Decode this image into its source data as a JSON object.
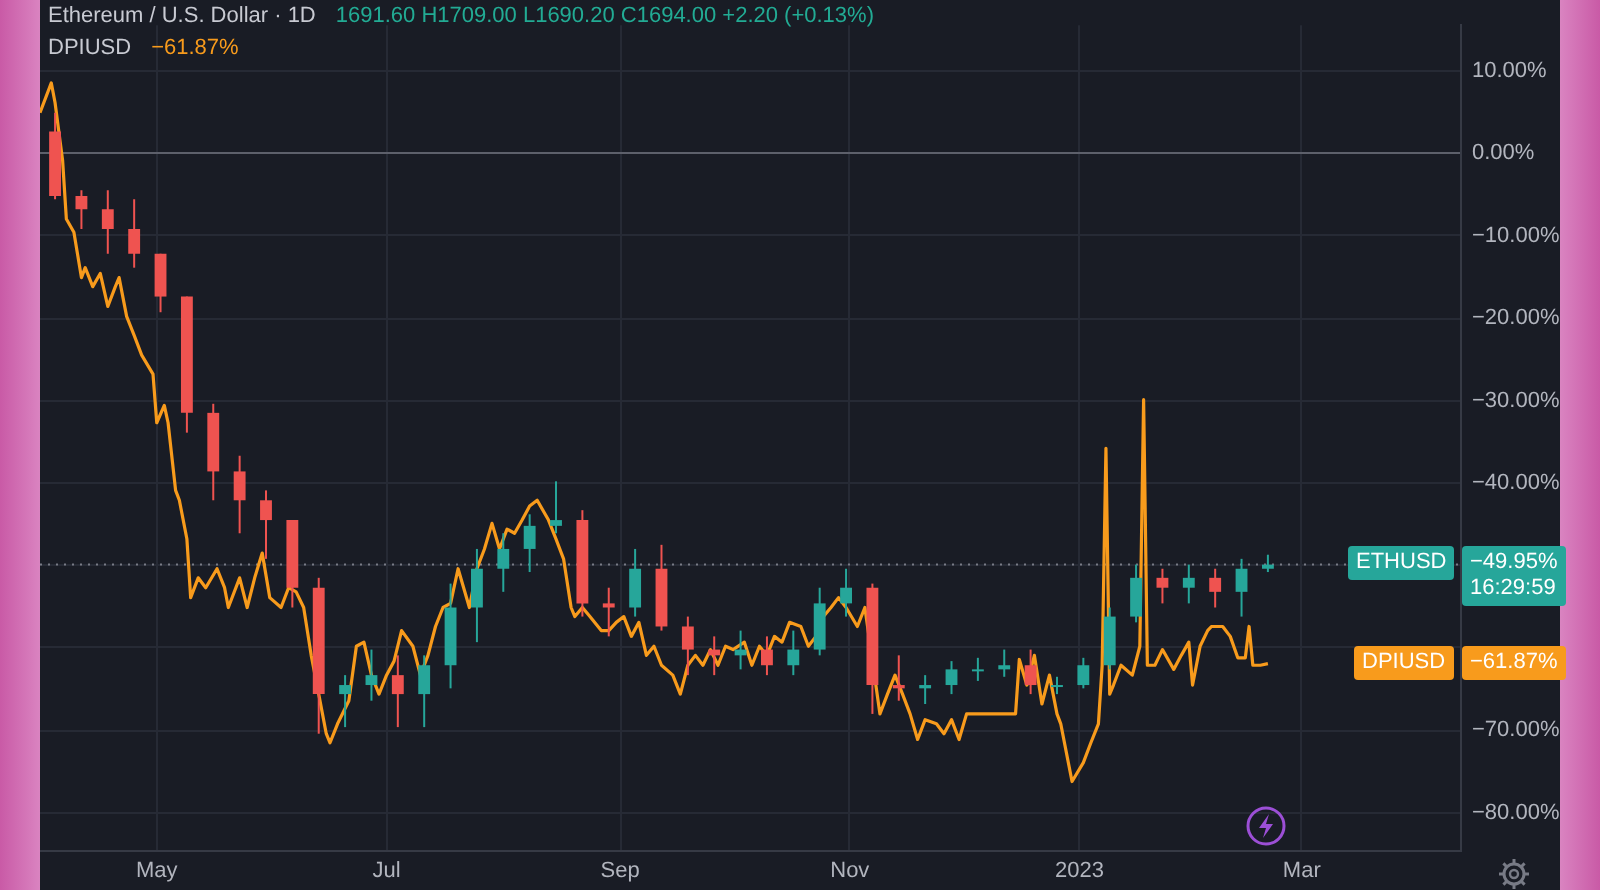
{
  "chart_data": {
    "type": "candlestick",
    "title": "Ethereum / U.S. Dollar · 1D",
    "annotations": [
      "1691.60 H1709.00 L1690.20 C1694.00 +2.20 (+0.13%)",
      "−61.87%",
      "−49.95%\n16:29:59",
      "−61.87%"
    ],
    "series": [
      {
        "name": "ETHUSD",
        "x": [
          "2022-04-04",
          "2022-04-11",
          "2022-04-18",
          "2022-04-25",
          "2022-05-02",
          "2022-05-09",
          "2022-05-16",
          "2022-05-23",
          "2022-05-30",
          "2022-06-06",
          "2022-06-13",
          "2022-06-20",
          "2022-06-27",
          "2022-07-04",
          "2022-07-11",
          "2022-07-18",
          "2022-07-25",
          "2022-08-01",
          "2022-08-08",
          "2022-08-15",
          "2022-08-22",
          "2022-08-29",
          "2022-09-05",
          "2022-09-12",
          "2022-09-19",
          "2022-09-26",
          "2022-10-03",
          "2022-10-10",
          "2022-10-17",
          "2022-10-24",
          "2022-10-31",
          "2022-11-07",
          "2022-11-14",
          "2022-11-21",
          "2022-11-28",
          "2022-12-05",
          "2022-12-12",
          "2022-12-19",
          "2022-12-26",
          "2023-01-02",
          "2023-01-09",
          "2023-01-16",
          "2023-01-23",
          "2023-01-30",
          "2023-02-06",
          "2023-02-13",
          "2023-02-20"
        ],
        "ohlc": [
          [
            2.6,
            4.9,
            -5.6,
            -5.2
          ],
          [
            -5.2,
            -4.5,
            -9.2,
            -6.8
          ],
          [
            -6.8,
            -4.5,
            -12.2,
            -9.2
          ],
          [
            -9.2,
            -5.6,
            -13.9,
            -12.2
          ],
          [
            -12.2,
            -12.2,
            -19.3,
            -17.4
          ],
          [
            -17.4,
            -17.4,
            -33.9,
            -31.5
          ],
          [
            -31.5,
            -30.4,
            -42.1,
            -38.6
          ],
          [
            -38.6,
            -36.7,
            -46.1,
            -42.1
          ],
          [
            -42.1,
            -40.9,
            -49.2,
            -44.5
          ],
          [
            -44.5,
            -44.5,
            -55.1,
            -52.7
          ],
          [
            -52.7,
            -51.5,
            -70.4,
            -65.6
          ],
          [
            -65.6,
            -63.3,
            -69.6,
            -64.5
          ],
          [
            -64.5,
            -60.2,
            -66.4,
            -63.3
          ],
          [
            -63.3,
            -60.9,
            -69.6,
            -65.6
          ],
          [
            -65.6,
            -60.9,
            -69.6,
            -62.1
          ],
          [
            -62.1,
            -52.2,
            -64.9,
            -55.1
          ],
          [
            -55.1,
            -48.0,
            -59.3,
            -50.4
          ],
          [
            -50.4,
            -46.1,
            -53.2,
            -48.0
          ],
          [
            -48.0,
            -43.8,
            -50.8,
            -45.2
          ],
          [
            -45.2,
            -39.8,
            -46.1,
            -44.5
          ],
          [
            -44.5,
            -43.3,
            -56.2,
            -54.6
          ],
          [
            -54.6,
            -52.7,
            -58.6,
            -55.1
          ],
          [
            -55.1,
            -48.0,
            -56.2,
            -50.4
          ],
          [
            -50.4,
            -47.5,
            -57.9,
            -57.4
          ],
          [
            -57.4,
            -56.2,
            -63.3,
            -60.2
          ],
          [
            -60.2,
            -58.6,
            -63.3,
            -60.9
          ],
          [
            -60.9,
            -57.9,
            -62.6,
            -60.2
          ],
          [
            -60.2,
            -58.6,
            -63.3,
            -62.1
          ],
          [
            -62.1,
            -57.9,
            -63.3,
            -60.2
          ],
          [
            -60.2,
            -52.7,
            -60.9,
            -54.6
          ],
          [
            -54.6,
            -50.4,
            -56.2,
            -52.7
          ],
          [
            -52.7,
            -52.2,
            -68.0,
            -64.5
          ],
          [
            -64.5,
            -60.9,
            -66.4,
            -64.9
          ],
          [
            -64.9,
            -63.3,
            -66.8,
            -64.5
          ],
          [
            -64.5,
            -61.6,
            -65.6,
            -62.6
          ],
          [
            -62.6,
            -61.2,
            -64.0,
            -62.6
          ],
          [
            -62.6,
            -60.2,
            -63.5,
            -62.1
          ],
          [
            -62.1,
            -60.2,
            -65.6,
            -64.5
          ],
          [
            -64.5,
            -63.5,
            -65.6,
            -64.5
          ],
          [
            -64.5,
            -61.2,
            -64.9,
            -62.1
          ],
          [
            -62.1,
            -55.1,
            -62.6,
            -56.2
          ],
          [
            -56.2,
            -49.9,
            -56.9,
            -51.5
          ],
          [
            -51.5,
            -50.4,
            -54.6,
            -52.7
          ],
          [
            -52.7,
            -49.9,
            -54.6,
            -51.5
          ],
          [
            -51.5,
            -50.4,
            -55.1,
            -53.2
          ],
          [
            -53.2,
            -49.2,
            -56.2,
            -50.4
          ],
          [
            -50.4,
            -48.7,
            -50.8,
            -49.9
          ]
        ],
        "colors": [
          "#ef5350",
          "#ef5350",
          "#ef5350",
          "#ef5350",
          "#ef5350",
          "#ef5350",
          "#ef5350",
          "#ef5350",
          "#ef5350",
          "#ef5350",
          "#ef5350",
          "#26a69a",
          "#26a69a",
          "#ef5350",
          "#26a69a",
          "#26a69a",
          "#26a69a",
          "#26a69a",
          "#26a69a",
          "#26a69a",
          "#ef5350",
          "#ef5350",
          "#26a69a",
          "#ef5350",
          "#ef5350",
          "#ef5350",
          "#26a69a",
          "#ef5350",
          "#26a69a",
          "#26a69a",
          "#26a69a",
          "#ef5350",
          "#ef5350",
          "#26a69a",
          "#26a69a",
          "#26a69a",
          "#26a69a",
          "#ef5350",
          "#26a69a",
          "#26a69a",
          "#26a69a",
          "#26a69a",
          "#ef5350",
          "#26a69a",
          "#ef5350",
          "#26a69a",
          "#26a69a"
        ]
      },
      {
        "name": "DPIUSD",
        "type": "line",
        "color": "#f89b1c",
        "x": [
          "2022-03-31",
          "2022-04-03",
          "2022-04-04",
          "2022-04-06",
          "2022-04-07",
          "2022-04-09",
          "2022-04-11",
          "2022-04-12",
          "2022-04-14",
          "2022-04-16",
          "2022-04-18",
          "2022-04-20",
          "2022-04-21",
          "2022-04-23",
          "2022-04-25",
          "2022-04-27",
          "2022-04-30",
          "2022-05-01",
          "2022-05-03",
          "2022-05-04",
          "2022-05-06",
          "2022-05-07",
          "2022-05-09",
          "2022-05-10",
          "2022-05-12",
          "2022-05-14",
          "2022-05-17",
          "2022-05-19",
          "2022-05-20",
          "2022-05-23",
          "2022-05-25",
          "2022-05-27",
          "2022-05-29",
          "2022-05-31",
          "2022-06-03",
          "2022-06-05",
          "2022-06-07",
          "2022-06-09",
          "2022-06-11",
          "2022-06-13",
          "2022-06-15",
          "2022-06-16",
          "2022-06-18",
          "2022-06-21",
          "2022-06-23",
          "2022-06-25",
          "2022-06-27",
          "2022-06-29",
          "2022-07-01",
          "2022-07-03",
          "2022-07-05",
          "2022-07-08",
          "2022-07-10",
          "2022-07-12",
          "2022-07-14",
          "2022-07-16",
          "2022-07-18",
          "2022-07-20",
          "2022-07-23",
          "2022-07-25",
          "2022-07-27",
          "2022-07-29",
          "2022-07-31",
          "2022-08-02",
          "2022-08-04",
          "2022-08-06",
          "2022-08-08",
          "2022-08-10",
          "2022-08-13",
          "2022-08-15",
          "2022-08-17",
          "2022-08-19",
          "2022-08-20",
          "2022-08-22",
          "2022-08-24",
          "2022-08-27",
          "2022-08-29",
          "2022-08-31",
          "2022-09-02",
          "2022-09-04",
          "2022-09-06",
          "2022-09-08",
          "2022-09-10",
          "2022-09-12",
          "2022-09-15",
          "2022-09-17",
          "2022-09-19",
          "2022-09-21",
          "2022-09-23",
          "2022-09-25",
          "2022-09-27",
          "2022-09-29",
          "2022-10-01",
          "2022-10-04",
          "2022-10-06",
          "2022-10-08",
          "2022-10-10",
          "2022-10-12",
          "2022-10-14",
          "2022-10-16",
          "2022-10-19",
          "2022-10-21",
          "2022-10-23",
          "2022-10-25",
          "2022-10-27",
          "2022-10-29",
          "2022-10-31",
          "2022-11-03",
          "2022-11-05",
          "2022-11-07",
          "2022-11-09",
          "2022-11-11",
          "2022-11-13",
          "2022-11-15",
          "2022-11-17",
          "2022-11-19",
          "2022-11-21",
          "2022-11-24",
          "2022-11-26",
          "2022-11-28",
          "2022-11-30",
          "2022-12-02",
          "2022-12-08",
          "2022-12-15",
          "2022-12-16",
          "2022-12-18",
          "2022-12-20",
          "2022-12-22",
          "2022-12-24",
          "2022-12-26",
          "2022-12-27",
          "2022-12-30",
          "2023-01-02",
          "2023-01-04",
          "2023-01-06",
          "2023-01-07",
          "2023-01-08",
          "2023-01-09",
          "2023-01-10",
          "2023-01-12",
          "2023-01-15",
          "2023-01-17",
          "2023-01-18",
          "2023-01-19",
          "2023-01-21",
          "2023-01-23",
          "2023-01-26",
          "2023-01-28",
          "2023-01-30",
          "2023-01-31",
          "2023-02-02",
          "2023-02-04",
          "2023-02-05",
          "2023-02-08",
          "2023-02-10",
          "2023-02-12",
          "2023-02-14",
          "2023-02-15",
          "2023-02-16",
          "2023-02-18",
          "2023-02-20"
        ],
        "values": [
          4.9,
          8.5,
          6.1,
          -0.9,
          -8.0,
          -9.6,
          -15.1,
          -13.9,
          -16.2,
          -14.6,
          -18.6,
          -16.2,
          -15.1,
          -19.8,
          -22.1,
          -24.5,
          -26.8,
          -32.7,
          -30.6,
          -32.7,
          -40.9,
          -42.1,
          -46.8,
          -53.9,
          -51.5,
          -52.7,
          -50.4,
          -52.7,
          -55.1,
          -51.5,
          -55.1,
          -51.5,
          -48.5,
          -53.9,
          -55.1,
          -52.7,
          -53.2,
          -55.1,
          -60.9,
          -65.6,
          -70.4,
          -71.5,
          -69.2,
          -66.4,
          -59.8,
          -59.3,
          -63.3,
          -65.6,
          -63.3,
          -61.6,
          -57.9,
          -59.8,
          -63.3,
          -60.9,
          -57.4,
          -55.1,
          -54.6,
          -50.4,
          -55.1,
          -50.4,
          -48.0,
          -44.9,
          -48.0,
          -45.6,
          -46.1,
          -44.5,
          -42.8,
          -42.1,
          -44.5,
          -46.8,
          -49.2,
          -55.1,
          -56.2,
          -55.1,
          -56.2,
          -57.9,
          -57.9,
          -56.9,
          -56.2,
          -58.6,
          -56.9,
          -60.9,
          -59.8,
          -62.1,
          -63.3,
          -65.6,
          -62.1,
          -60.9,
          -62.1,
          -60.2,
          -62.1,
          -59.8,
          -60.2,
          -59.3,
          -62.1,
          -59.8,
          -60.9,
          -58.6,
          -59.3,
          -56.9,
          -57.4,
          -59.8,
          -58.6,
          -56.2,
          -55.1,
          -53.9,
          -55.1,
          -57.4,
          -55.1,
          null,
          -68.0,
          -65.6,
          -63.3,
          -65.6,
          -68.0,
          -71.1,
          -68.7,
          -69.2,
          -70.4,
          -68.7,
          -71.1,
          -68.0,
          -68.0,
          -68.0,
          -61.4,
          -64.5,
          -60.9,
          -66.8,
          -63.3,
          -68.0,
          -69.2,
          -76.2,
          -73.9,
          -71.5,
          -69.2,
          -62.1,
          -35.8,
          -65.6,
          -64.5,
          -62.1,
          -63.3,
          -59.8,
          -29.9,
          -62.1,
          -62.1,
          -60.2,
          -62.6,
          -60.9,
          -59.3,
          -64.5,
          -59.8,
          -57.9,
          -57.4,
          -57.4,
          -58.6,
          -61.2,
          -61.2,
          -57.4,
          -62.1,
          -62.1,
          -61.9
        ]
      }
    ],
    "xlim": [
      "2022-03-31",
      "2023-04-12"
    ],
    "xticks": [
      {
        "value": "2022-05-01",
        "label": "May"
      },
      {
        "value": "2022-07-01",
        "label": "Jul"
      },
      {
        "value": "2022-09-01",
        "label": "Sep"
      },
      {
        "value": "2022-11-01",
        "label": "Nov"
      },
      {
        "value": "2023-01-01",
        "label": "2023"
      },
      {
        "value": "2023-03-01",
        "label": "Mar"
      }
    ],
    "ylim": [
      -84.5,
      15.5
    ],
    "yticks": [
      {
        "value": 10,
        "label": "10.00%"
      },
      {
        "value": 0,
        "label": "0.00%"
      },
      {
        "value": -10,
        "label": "−10.00%"
      },
      {
        "value": -20,
        "label": "−20.00%"
      },
      {
        "value": -30,
        "label": "−30.00%"
      },
      {
        "value": -40,
        "label": "−40.00%"
      },
      {
        "value": -50,
        "label": null
      },
      {
        "value": -60,
        "label": null
      },
      {
        "value": -70,
        "label": "−70.00%"
      },
      {
        "value": -80,
        "label": "−80.00%"
      }
    ],
    "ref_lines": [
      {
        "axis": "y",
        "value": 0,
        "color": "#5d606b",
        "line_style": "solid"
      },
      {
        "axis": "y",
        "value": -49.9,
        "color": "#787b86",
        "line_style": "dotted"
      }
    ],
    "grid": true,
    "marker": "none"
  }
}
